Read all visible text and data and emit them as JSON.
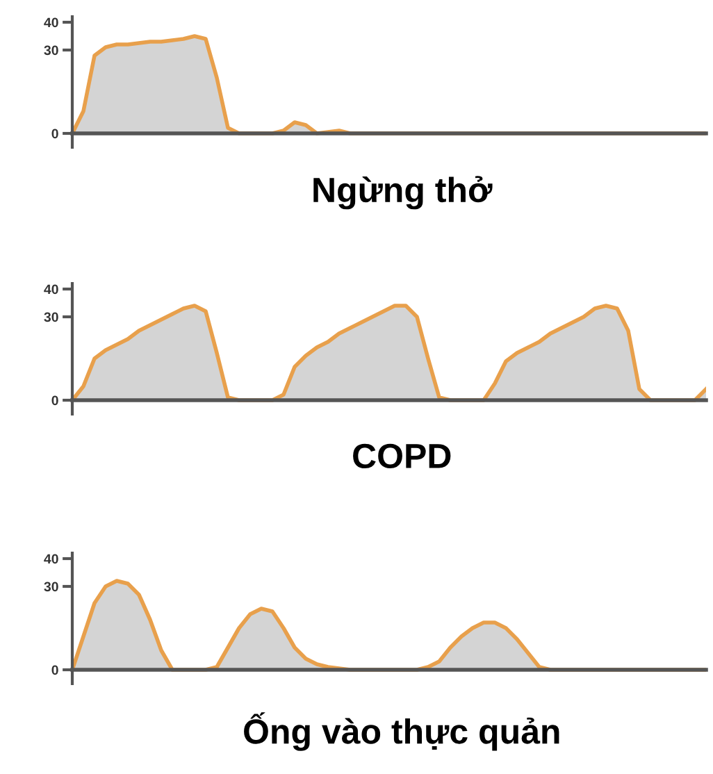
{
  "chart_data": [
    {
      "type": "area",
      "xlabel": "Ngừng thở",
      "tick_labels": "y",
      "ylim": [
        -5,
        42
      ],
      "yticks": [
        0,
        30,
        40
      ],
      "color": "#e8a04c",
      "categories": [
        null,
        null,
        null,
        null,
        null,
        null,
        null,
        null,
        null,
        null,
        null,
        null,
        null,
        null,
        null,
        null,
        null,
        null,
        null,
        null,
        null,
        null,
        null,
        null,
        null,
        null,
        null,
        null,
        null,
        null,
        null,
        null,
        null,
        null,
        null,
        null,
        null,
        null,
        null,
        null,
        null,
        null,
        null,
        null,
        null,
        null,
        null,
        null,
        null,
        null,
        null,
        null,
        null,
        null,
        null,
        null,
        null,
        null
      ],
      "values": [
        0,
        8,
        28,
        31,
        32,
        32,
        32.5,
        33,
        33,
        33.5,
        34,
        35,
        34,
        20,
        2,
        0,
        0,
        0,
        0,
        1,
        4,
        3,
        0,
        0.5,
        1,
        0,
        0,
        0,
        0,
        0,
        0,
        0,
        0,
        0,
        0,
        0,
        0,
        0,
        0,
        0,
        0,
        0,
        0,
        0,
        0,
        0,
        0,
        0,
        0,
        0,
        0,
        0,
        0,
        0,
        0,
        0,
        0,
        0
      ]
    },
    {
      "type": "area",
      "xlabel": "COPD",
      "tick_labels": "y",
      "ylim": [
        -5,
        42
      ],
      "yticks": [
        0,
        30,
        40
      ],
      "color": "#e8a04c",
      "categories": [
        null,
        null,
        null,
        null,
        null,
        null,
        null,
        null,
        null,
        null,
        null,
        null,
        null,
        null,
        null,
        null,
        null,
        null,
        null,
        null,
        null,
        null,
        null,
        null,
        null,
        null,
        null,
        null,
        null,
        null,
        null,
        null,
        null,
        null,
        null,
        null,
        null,
        null,
        null,
        null,
        null,
        null,
        null,
        null,
        null,
        null,
        null,
        null,
        null,
        null,
        null,
        null,
        null,
        null,
        null,
        null,
        null,
        null
      ],
      "values": [
        0,
        5,
        15,
        18,
        20,
        22,
        25,
        27,
        29,
        31,
        33,
        34,
        32,
        17,
        1,
        0,
        0,
        0,
        0,
        2,
        12,
        16,
        19,
        21,
        24,
        26,
        28,
        30,
        32,
        34,
        34,
        30,
        15,
        1,
        0,
        0,
        0,
        0,
        6,
        14,
        17,
        19,
        21,
        24,
        26,
        28,
        30,
        33,
        34,
        33,
        25,
        4,
        0,
        0,
        0,
        0,
        0,
        4
      ]
    },
    {
      "type": "area",
      "xlabel": "Ống vào thực quản",
      "tick_labels": "y",
      "ylim": [
        -5,
        42
      ],
      "yticks": [
        0,
        30,
        40
      ],
      "color": "#e8a04c",
      "categories": [
        null,
        null,
        null,
        null,
        null,
        null,
        null,
        null,
        null,
        null,
        null,
        null,
        null,
        null,
        null,
        null,
        null,
        null,
        null,
        null,
        null,
        null,
        null,
        null,
        null,
        null,
        null,
        null,
        null,
        null,
        null,
        null,
        null,
        null,
        null,
        null,
        null,
        null,
        null,
        null,
        null,
        null,
        null,
        null,
        null,
        null,
        null,
        null,
        null,
        null,
        null,
        null,
        null,
        null,
        null,
        null,
        null,
        null
      ],
      "values": [
        0,
        12,
        24,
        30,
        32,
        31,
        27,
        18,
        7,
        0,
        0,
        0,
        0,
        1,
        8,
        15,
        20,
        22,
        21,
        15,
        8,
        4,
        2,
        1,
        0.5,
        0,
        0,
        0,
        0,
        0,
        0,
        0,
        1,
        3,
        8,
        12,
        15,
        17,
        17,
        15,
        11,
        6,
        1,
        0,
        0,
        0,
        0,
        0,
        0,
        0,
        0,
        0,
        0,
        0,
        0,
        0,
        0,
        0
      ]
    }
  ]
}
